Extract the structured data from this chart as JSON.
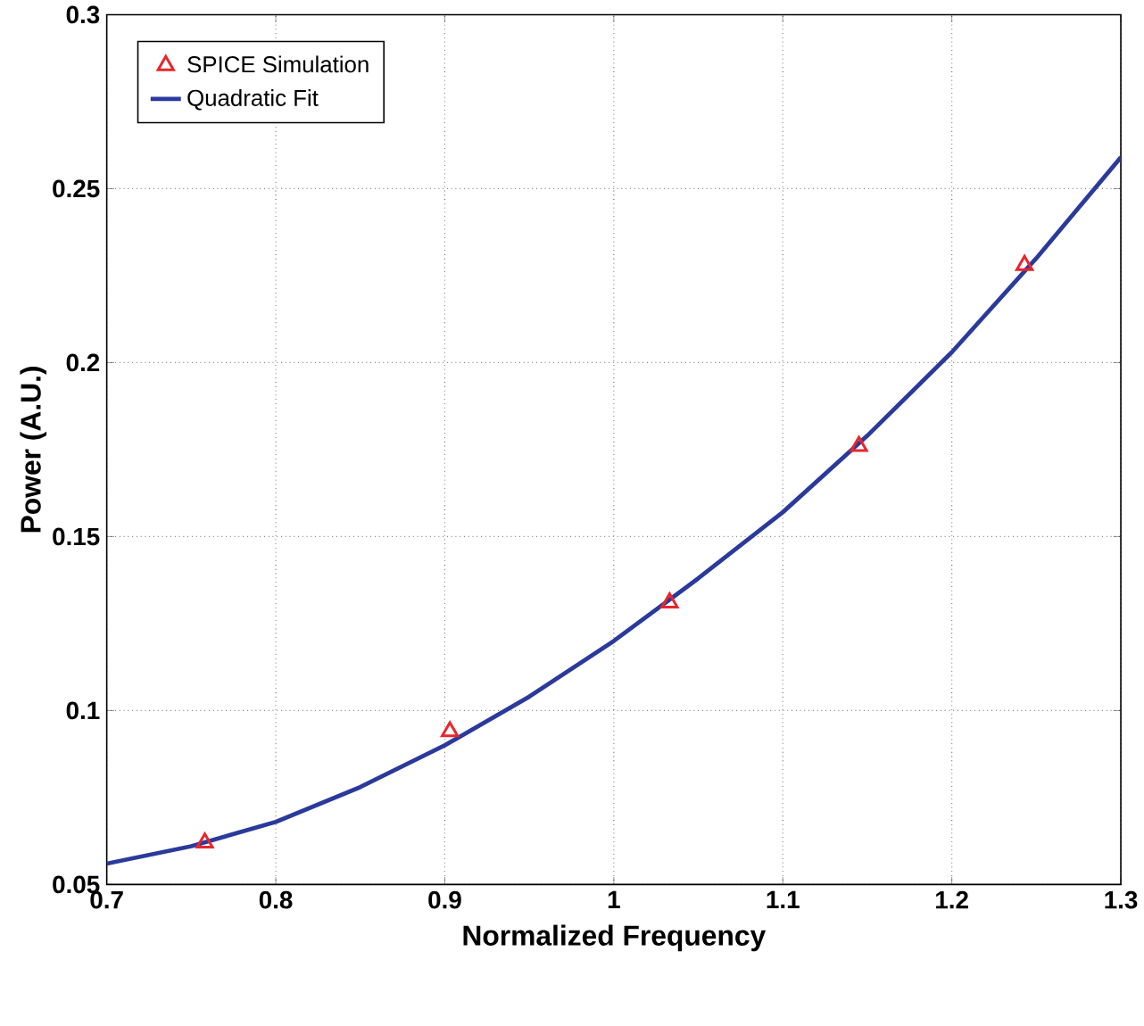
{
  "chart_data": {
    "type": "line",
    "xlabel": "Normalized Frequency",
    "ylabel": "Power  (A.U.)",
    "xlim": [
      0.7,
      1.3
    ],
    "ylim": [
      0.05,
      0.3
    ],
    "xticks": [
      0.7,
      0.8,
      0.9,
      1,
      1.1,
      1.2,
      1.3
    ],
    "yticks": [
      0.05,
      0.1,
      0.15,
      0.2,
      0.25,
      0.3
    ],
    "grid": true,
    "legend": "top left",
    "series": [
      {
        "name": "SPICE Simulation",
        "type": "scatter",
        "marker": "triangle",
        "color": "#e8262b",
        "x": [
          0.758,
          0.903,
          1.033,
          1.145,
          1.243
        ],
        "values": [
          0.062,
          0.094,
          0.131,
          0.176,
          0.228
        ]
      },
      {
        "name": "Quadratic Fit",
        "marker": "none",
        "line_style": "solid",
        "color": "#2a3a9c",
        "x": [
          0.7,
          0.75,
          0.8,
          0.85,
          0.9,
          0.95,
          1.0,
          1.05,
          1.1,
          1.15,
          1.2,
          1.25,
          1.3
        ],
        "values": [
          0.056,
          0.061,
          0.068,
          0.078,
          0.09,
          0.104,
          0.12,
          0.138,
          0.157,
          0.179,
          0.203,
          0.23,
          0.259
        ]
      }
    ]
  }
}
